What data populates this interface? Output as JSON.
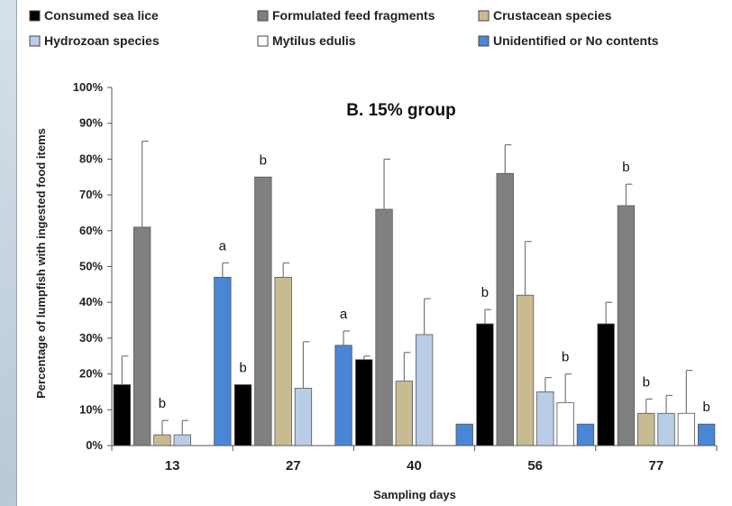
{
  "chart_data": {
    "type": "bar",
    "title": "B. 15% group",
    "xlabel": "Sampling days",
    "ylabel": "Percentage of lumpfish with ingested food items",
    "ylim": [
      0,
      100
    ],
    "yticks": [
      "0%",
      "10%",
      "20%",
      "30%",
      "40%",
      "50%",
      "60%",
      "70%",
      "80%",
      "90%",
      "100%"
    ],
    "categories": [
      "13",
      "27",
      "40",
      "56",
      "77"
    ],
    "legend_position": "top",
    "series": [
      {
        "name": "Consumed sea lice",
        "color": "#000000",
        "values": [
          17,
          17,
          24,
          34,
          34
        ],
        "errors": [
          8,
          0,
          1,
          4,
          6
        ]
      },
      {
        "name": "Formulated feed fragments",
        "color": "#808080",
        "values": [
          61,
          75,
          66,
          76,
          67
        ],
        "errors": [
          24,
          0,
          14,
          8,
          6
        ]
      },
      {
        "name": "Crustacean species",
        "color": "#c8bb91",
        "values": [
          3,
          47,
          18,
          42,
          9
        ],
        "errors": [
          4,
          4,
          8,
          15,
          4
        ]
      },
      {
        "name": "Hydrozoan species",
        "color": "#b9cde6",
        "values": [
          3,
          16,
          31,
          15,
          9
        ],
        "errors": [
          4,
          13,
          10,
          4,
          5
        ]
      },
      {
        "name": "Mytilus edulis",
        "color": "#ffffff",
        "values": [
          0,
          0,
          0,
          12,
          9
        ],
        "errors": [
          0,
          0,
          0,
          8,
          12
        ]
      },
      {
        "name": "Unidentified or No contents",
        "color": "#4a86d6",
        "values": [
          47,
          28,
          6,
          6,
          6
        ],
        "errors": [
          4,
          4,
          0,
          0,
          0
        ]
      }
    ],
    "significance_labels": [
      {
        "text": "b",
        "category": 0,
        "series": 2
      },
      {
        "text": "a",
        "category": 0,
        "series": 5
      },
      {
        "text": "b",
        "category": 1,
        "series": 0
      },
      {
        "text": "b",
        "category": 1,
        "series": 1
      },
      {
        "text": "a",
        "category": 1,
        "series": 5
      },
      {
        "text": "b",
        "category": 3,
        "series": 0
      },
      {
        "text": "b",
        "category": 3,
        "series": 4
      },
      {
        "text": "b",
        "category": 4,
        "series": 1
      },
      {
        "text": "b",
        "category": 4,
        "series": 2
      },
      {
        "text": "b",
        "category": 4,
        "series": 5
      }
    ]
  }
}
